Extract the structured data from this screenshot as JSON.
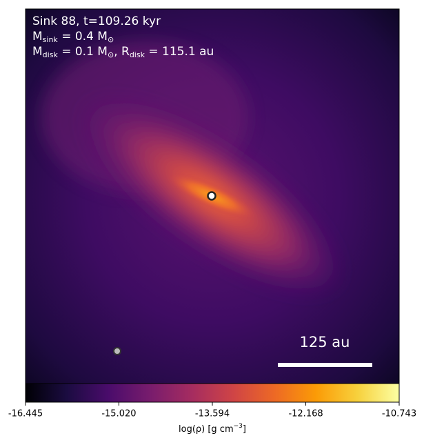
{
  "chart_data": {
    "type": "heatmap",
    "colormap": "inferno",
    "info_lines": [
      [
        "Sink 88, t=109.26 kyr"
      ],
      [
        "M",
        "sink",
        " = 0.4 M",
        "⊙"
      ],
      [
        "M",
        "disk",
        " = 0.1 M",
        "⊙",
        ", R",
        "disk",
        " = 115.1 au"
      ]
    ],
    "scale_bar_label": "125 au",
    "colorbar_label": [
      "log(ρ) [g cm",
      "−3",
      "]"
    ],
    "clim": [
      -16.445,
      -10.743
    ],
    "cticks": [
      -16.445,
      {
        "value": -15.02,
        "label": "-15.020"
      },
      -13.594,
      -12.168,
      -10.743
    ]
  }
}
